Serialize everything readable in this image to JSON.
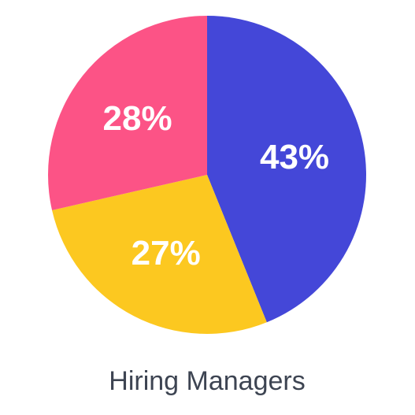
{
  "chart_data": {
    "type": "pie",
    "title": "Hiring Managers",
    "values": [
      43,
      27,
      28
    ],
    "value_labels": [
      "43%",
      "27%",
      "28%"
    ],
    "colors": [
      "#4447d8",
      "#fcc820",
      "#fc5386"
    ],
    "start_angle": 0,
    "direction": "clockwise"
  }
}
